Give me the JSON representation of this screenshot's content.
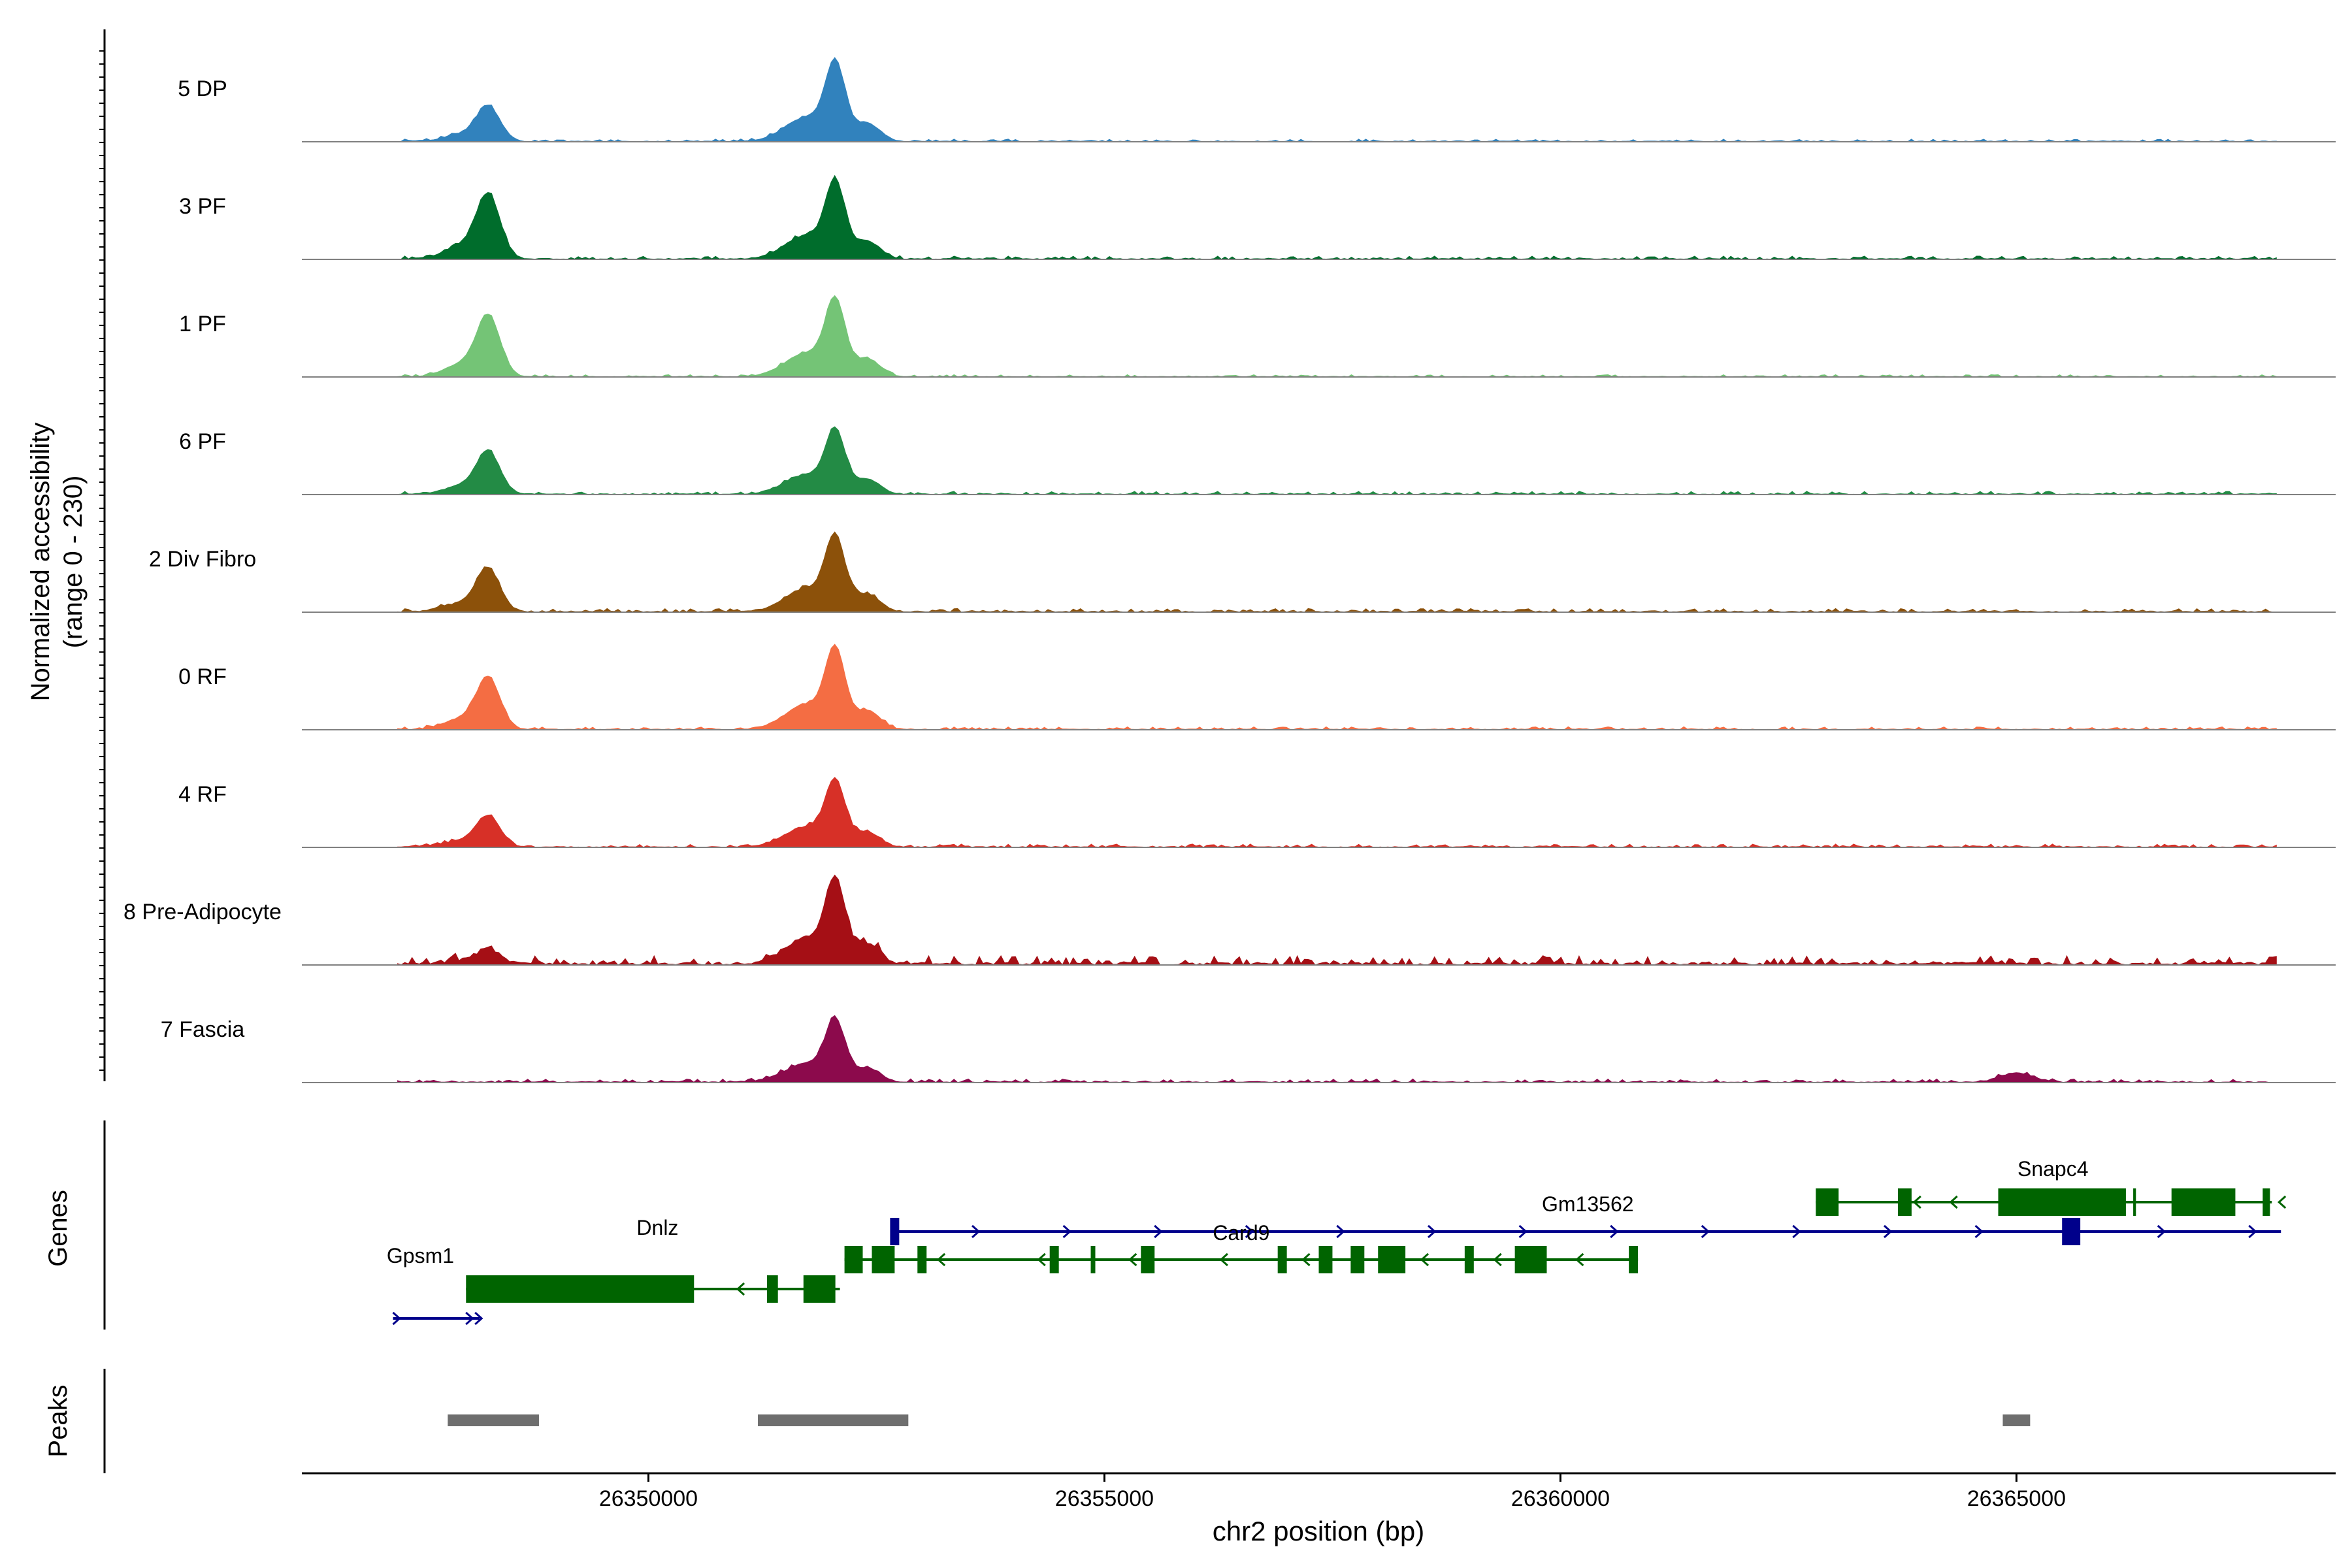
{
  "chart_data": {
    "type": "area",
    "region": "chr2",
    "y_axis": {
      "label_line1": "Normalized accessibility",
      "label_line2": "(range 0 - 230)",
      "ylim": [
        0,
        230
      ]
    },
    "x_axis": {
      "label": "chr2 position (bp)",
      "xlim": [
        26346200,
        26368500
      ],
      "ticks": [
        26350000,
        26355000,
        26360000,
        26365000
      ],
      "tick_labels": [
        "26350000",
        "26355000",
        "26360000",
        "26365000"
      ]
    },
    "peak_profile_centers": [
      26348250,
      26352050
    ],
    "tracks": [
      {
        "name": "5 DP",
        "color": "#3182bd",
        "p1": 95,
        "p2": 210,
        "noise": 8
      },
      {
        "name": "3 PF",
        "color": "#006d2c",
        "p1": 175,
        "p2": 205,
        "noise": 10
      },
      {
        "name": "1 PF",
        "color": "#74c476",
        "p1": 165,
        "p2": 205,
        "noise": 7
      },
      {
        "name": "6 PF",
        "color": "#238b45",
        "p1": 115,
        "p2": 170,
        "noise": 10
      },
      {
        "name": "2 Div Fibro",
        "color": "#8c510a",
        "p1": 115,
        "p2": 200,
        "noise": 11
      },
      {
        "name": "0 RF",
        "color": "#f46d43",
        "p1": 140,
        "p2": 215,
        "noise": 9
      },
      {
        "name": "4 RF",
        "color": "#d73027",
        "p1": 85,
        "p2": 175,
        "noise": 10
      },
      {
        "name": "8 Pre-Adipocyte",
        "color": "#a50f15",
        "p1": 40,
        "p2": 225,
        "noise": 28
      },
      {
        "name": "7 Fascia",
        "color": "#8c0a4c",
        "p1": 0,
        "p2": 165,
        "noise": 11
      }
    ],
    "genes": {
      "axis_label": "Genes",
      "items": [
        {
          "name": "Snapc4",
          "color": "#006400",
          "label_x": 26365400,
          "row": 0
        },
        {
          "name": "Gm13562",
          "color": "#00008b",
          "label_x": 26360300,
          "row": 1
        },
        {
          "name": "Card9",
          "color": "#006400",
          "label_x": 26356500,
          "row": 1
        },
        {
          "name": "Dnlz",
          "color": "#006400",
          "label_x": 26350100,
          "row": 2
        },
        {
          "name": "Gpsm1",
          "color": "#00008b",
          "label_x": 26347500,
          "row": 3
        }
      ]
    },
    "peaks": {
      "axis_label": "Peaks",
      "color": "#6e6e6e",
      "ranges": [
        [
          26347800,
          26348800
        ],
        [
          26351200,
          26352850
        ],
        [
          26364850,
          26365150
        ]
      ]
    }
  }
}
